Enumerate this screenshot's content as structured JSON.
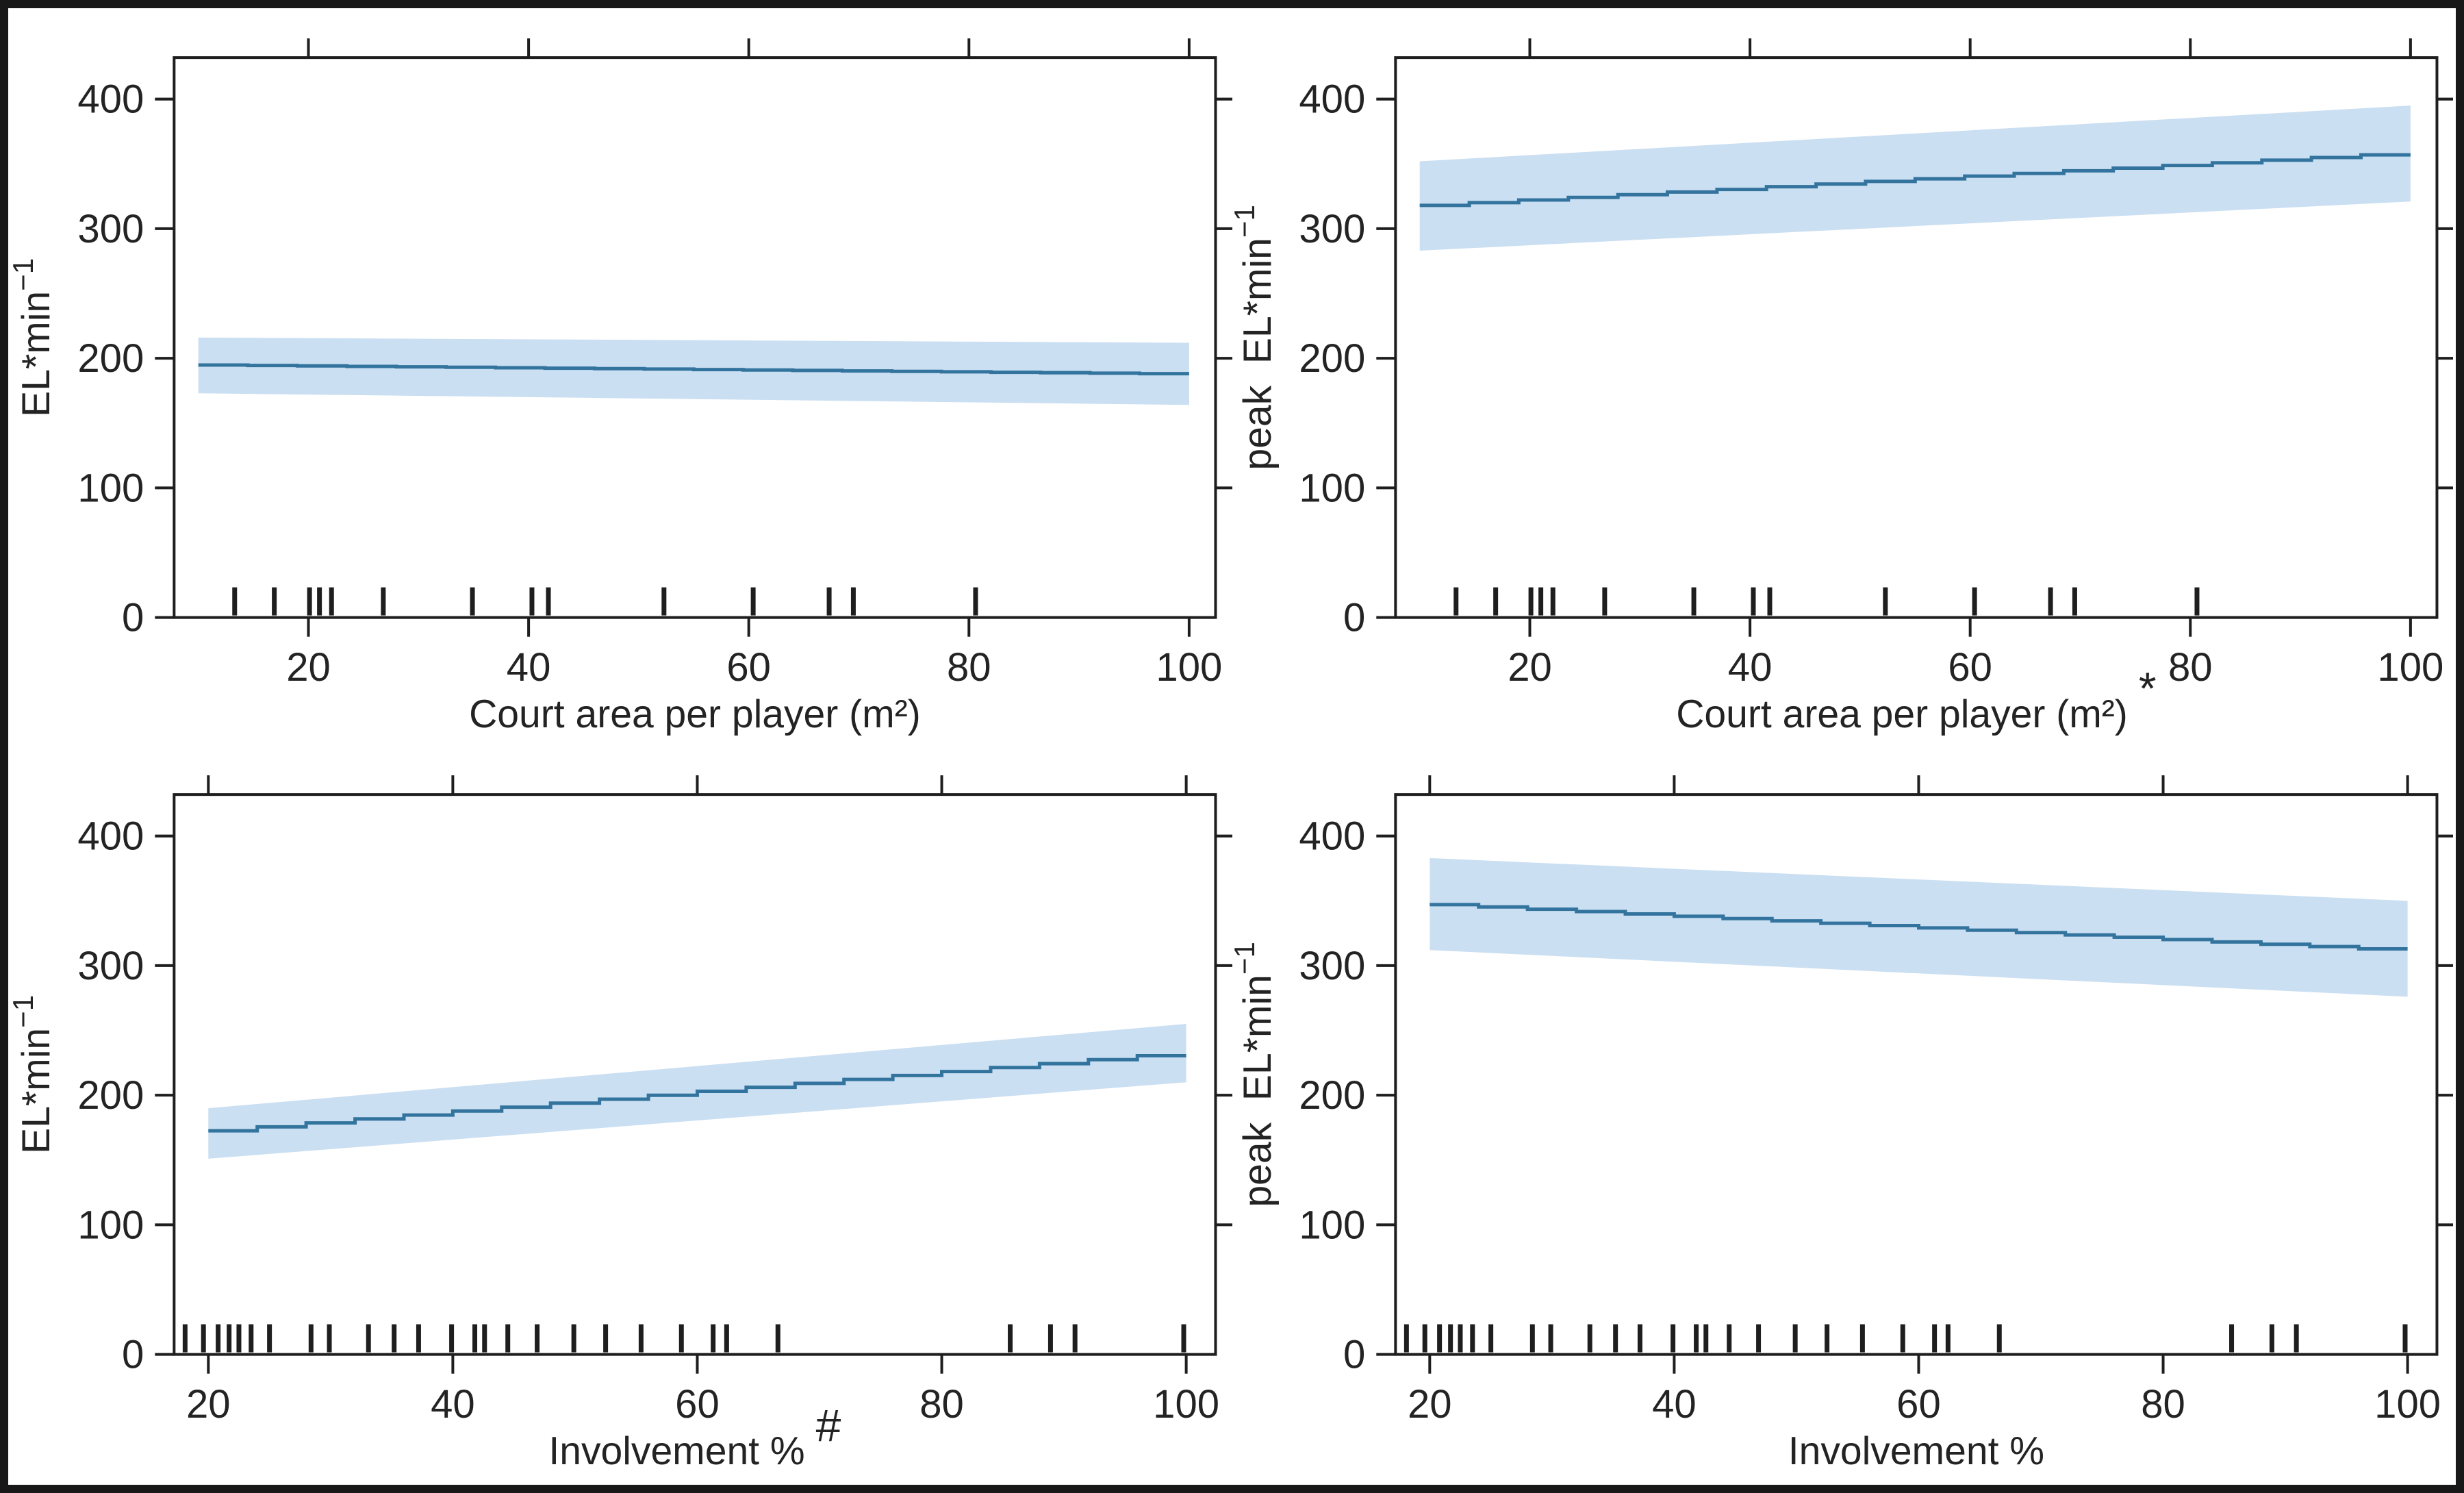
{
  "figure": {
    "background": "#ffffff",
    "border_color": "#181818",
    "axis_color": "#1e1e1e",
    "text_color": "#232323",
    "band_color": "#cbdff2",
    "line_color": "#33749e"
  },
  "chart_data": [
    {
      "type": "area",
      "panel": "top-left",
      "xlabel": "Court area per player (m²)",
      "xlabel_marker": "",
      "ylabel": {
        "text": "EL*min",
        "sup": "−1"
      },
      "xlim": [
        7.8,
        102.4
      ],
      "ylim": [
        0,
        432
      ],
      "xticks": [
        20,
        40,
        60,
        80,
        100
      ],
      "yticks": [
        0,
        100,
        200,
        300,
        400
      ],
      "line": {
        "x": [
          10,
          100
        ],
        "y": [
          195,
          188
        ]
      },
      "band": {
        "x": [
          10,
          100
        ],
        "upper": [
          216,
          212
        ],
        "lower": [
          173,
          164
        ]
      },
      "rug": [
        13.3,
        16.9,
        20.1,
        21.0,
        22.1,
        26.8,
        34.9,
        40.3,
        41.8,
        52.3,
        60.4,
        67.3,
        69.5,
        80.6
      ]
    },
    {
      "type": "area",
      "panel": "top-right",
      "xlabel": "Court area per player (m²)",
      "xlabel_marker": "*",
      "ylabel": {
        "text": "peak  EL*min",
        "sup": "−1"
      },
      "xlim": [
        7.8,
        102.4
      ],
      "ylim": [
        0,
        432
      ],
      "xticks": [
        20,
        40,
        60,
        80,
        100
      ],
      "yticks": [
        0,
        100,
        200,
        300,
        400
      ],
      "line": {
        "x": [
          10,
          100
        ],
        "y": [
          317,
          358
        ]
      },
      "band": {
        "x": [
          10,
          100
        ],
        "upper": [
          352,
          395
        ],
        "lower": [
          283,
          321
        ]
      },
      "rug": [
        13.3,
        16.9,
        20.1,
        21.0,
        22.1,
        26.8,
        34.9,
        40.3,
        41.8,
        52.3,
        60.4,
        67.3,
        69.5,
        80.6
      ]
    },
    {
      "type": "area",
      "panel": "bottom-left",
      "xlabel": "Involvement %",
      "xlabel_marker": "#",
      "ylabel": {
        "text": "EL*min",
        "sup": "−1"
      },
      "xlim": [
        17.2,
        102.4
      ],
      "ylim": [
        0,
        432
      ],
      "xticks": [
        20,
        40,
        60,
        80,
        100
      ],
      "yticks": [
        0,
        100,
        200,
        300,
        400
      ],
      "line": {
        "x": [
          20,
          100
        ],
        "y": [
          171,
          232
        ]
      },
      "band": {
        "x": [
          20,
          100
        ],
        "upper": [
          190,
          255
        ],
        "lower": [
          151,
          210
        ]
      },
      "rug": [
        18.1,
        19.6,
        20.8,
        21.7,
        22.5,
        23.5,
        25.0,
        28.4,
        29.9,
        33.1,
        35.2,
        37.2,
        39.9,
        41.8,
        42.6,
        44.5,
        46.9,
        49.9,
        52.5,
        55.4,
        58.7,
        61.3,
        62.4,
        66.6,
        85.6,
        88.9,
        90.9,
        99.8
      ]
    },
    {
      "type": "area",
      "panel": "bottom-right",
      "xlabel": "Involvement %",
      "xlabel_marker": "",
      "ylabel": {
        "text": "peak  EL*min",
        "sup": "−1"
      },
      "xlim": [
        17.2,
        102.4
      ],
      "ylim": [
        0,
        432
      ],
      "xticks": [
        20,
        40,
        60,
        80,
        100
      ],
      "yticks": [
        0,
        100,
        200,
        300,
        400
      ],
      "line": {
        "x": [
          20,
          100
        ],
        "y": [
          348,
          312
        ]
      },
      "band": {
        "x": [
          20,
          100
        ],
        "upper": [
          383,
          350
        ],
        "lower": [
          312,
          276
        ]
      },
      "rug": [
        18.1,
        19.6,
        20.8,
        21.7,
        22.5,
        23.5,
        25.0,
        28.4,
        29.9,
        33.1,
        35.2,
        37.2,
        39.9,
        41.8,
        42.6,
        44.5,
        46.9,
        49.9,
        52.5,
        55.4,
        58.7,
        61.3,
        62.4,
        66.6,
        85.6,
        88.9,
        90.9,
        99.8
      ]
    }
  ]
}
